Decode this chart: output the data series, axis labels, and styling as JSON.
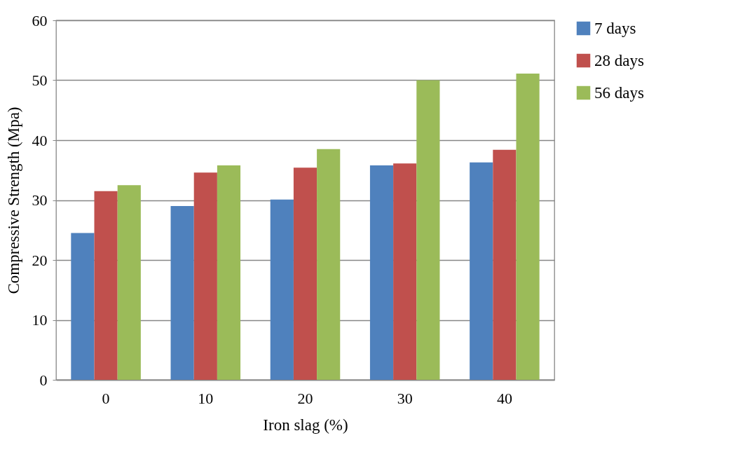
{
  "chart_data": {
    "type": "bar",
    "xlabel": "Iron slag (%)",
    "ylabel": "Compressive Strength (Mpa)",
    "categories": [
      "0",
      "10",
      "20",
      "30",
      "40"
    ],
    "series": [
      {
        "name": "7 days",
        "color": "#4f81bd",
        "values": [
          24.5,
          29,
          30.1,
          35.8,
          36.3
        ]
      },
      {
        "name": "28 days",
        "color": "#c0504d",
        "values": [
          31.5,
          34.6,
          35.4,
          36.1,
          38.4
        ]
      },
      {
        "name": "56 days",
        "color": "#9bbb59",
        "values": [
          32.5,
          35.8,
          38.5,
          50,
          51.1
        ]
      }
    ],
    "ylim": [
      0,
      60
    ],
    "yticks": [
      0,
      10,
      20,
      30,
      40,
      50,
      60
    ],
    "grid": "y",
    "legend": "right"
  }
}
